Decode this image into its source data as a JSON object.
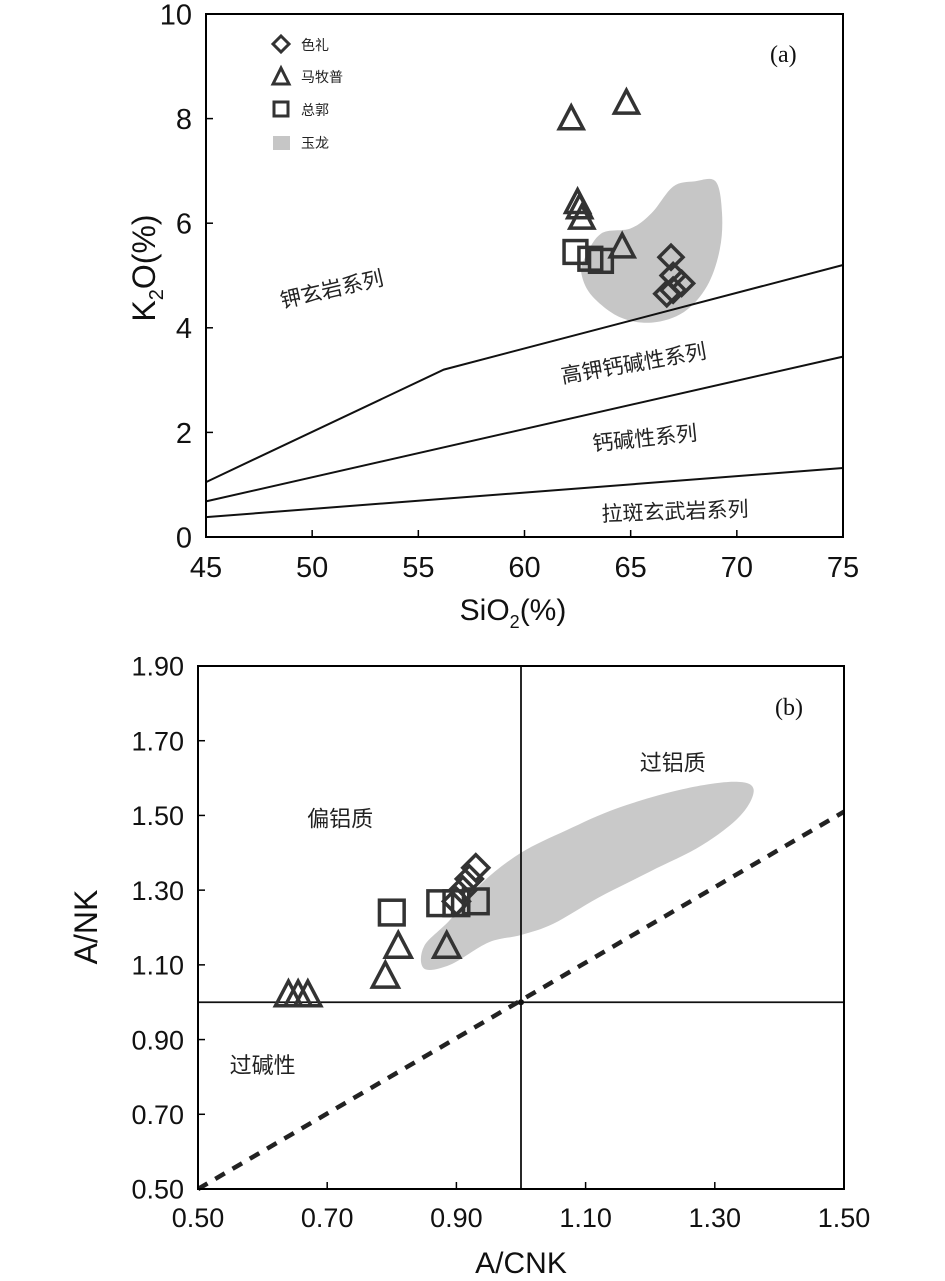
{
  "chart_data": [
    {
      "type": "scatter",
      "panel_label": "(a)",
      "xlabel": {
        "main": "SiO",
        "sub": "2",
        "tail": "(%)"
      },
      "ylabel": {
        "main": "K",
        "sub": "2",
        "tail": "O(%)"
      },
      "xlim": [
        45,
        75
      ],
      "ylim": [
        0,
        10
      ],
      "xticks": [
        "45",
        "50",
        "55",
        "60",
        "65",
        "70",
        "75"
      ],
      "yticks": [
        "0",
        "2",
        "4",
        "6",
        "8",
        "10"
      ],
      "legend": [
        {
          "label": "色礼",
          "marker": "diamond"
        },
        {
          "label": "马牧普",
          "marker": "triangle"
        },
        {
          "label": "总郭",
          "marker": "square"
        },
        {
          "label": "玉龙",
          "marker": "field"
        }
      ],
      "series": [
        {
          "name": "色礼",
          "marker": "diamond",
          "points": [
            [
              66.9,
              5.35
            ],
            [
              67.0,
              5.0
            ],
            [
              67.4,
              4.85
            ],
            [
              67.0,
              4.72
            ],
            [
              66.7,
              4.65
            ]
          ]
        },
        {
          "name": "马牧普",
          "marker": "triangle",
          "points": [
            [
              62.2,
              8.0
            ],
            [
              64.8,
              8.3
            ],
            [
              62.5,
              6.4
            ],
            [
              62.6,
              6.3
            ],
            [
              62.7,
              6.1
            ],
            [
              64.6,
              5.55
            ]
          ]
        },
        {
          "name": "总郭",
          "marker": "square",
          "points": [
            [
              62.4,
              5.45
            ],
            [
              63.1,
              5.32
            ],
            [
              63.6,
              5.28
            ]
          ]
        }
      ],
      "field": {
        "name": "玉龙",
        "outline": [
          [
            62.8,
            5.3
          ],
          [
            63.6,
            5.8
          ],
          [
            65.0,
            5.9
          ],
          [
            66.0,
            6.2
          ],
          [
            67.0,
            6.7
          ],
          [
            68.0,
            6.8
          ],
          [
            69.0,
            6.8
          ],
          [
            69.3,
            6.2
          ],
          [
            69.2,
            5.5
          ],
          [
            68.6,
            4.8
          ],
          [
            67.5,
            4.3
          ],
          [
            66.0,
            4.1
          ],
          [
            64.5,
            4.2
          ],
          [
            63.2,
            4.6
          ],
          [
            62.7,
            5.0
          ]
        ]
      },
      "boundaries": [
        [
          [
            45,
            1.05
          ],
          [
            56.2,
            3.2
          ],
          [
            75,
            5.2
          ]
        ],
        [
          [
            45,
            0.68
          ],
          [
            75,
            3.45
          ]
        ],
        [
          [
            45,
            0.38
          ],
          [
            75,
            1.32
          ]
        ]
      ],
      "series_labels": [
        {
          "text": "钾玄岩系列",
          "at": [
            51,
            4.6
          ],
          "angle": -13
        },
        {
          "text": "高钾钙碱性系列",
          "at": [
            65.2,
            3.18
          ],
          "angle": -10
        },
        {
          "text": "钙碱性系列",
          "at": [
            65.7,
            1.75
          ],
          "angle": -6
        },
        {
          "text": "拉斑玄武岩系列",
          "at": [
            67.1,
            0.35
          ],
          "angle": -2
        }
      ]
    },
    {
      "type": "scatter",
      "panel_label": "(b)",
      "xlabel": "A/CNK",
      "ylabel": "A/NK",
      "xlim": [
        0.5,
        1.5
      ],
      "ylim": [
        0.5,
        1.9
      ],
      "xticks": [
        "0.50",
        "0.70",
        "0.90",
        "1.10",
        "1.30",
        "1.50"
      ],
      "yticks": [
        "0.50",
        "0.70",
        "0.90",
        "1.10",
        "1.30",
        "1.50",
        "1.70",
        "1.90"
      ],
      "series": [
        {
          "name": "色礼",
          "marker": "diamond",
          "points": [
            [
              0.93,
              1.36
            ],
            [
              0.92,
              1.33
            ],
            [
              0.91,
              1.3
            ],
            [
              0.9,
              1.27
            ]
          ]
        },
        {
          "name": "马牧普",
          "marker": "triangle",
          "points": [
            [
              0.64,
              1.02
            ],
            [
              0.655,
              1.02
            ],
            [
              0.67,
              1.02
            ],
            [
              0.79,
              1.07
            ],
            [
              0.81,
              1.15
            ],
            [
              0.885,
              1.15
            ]
          ]
        },
        {
          "name": "总郭",
          "marker": "square",
          "points": [
            [
              0.8,
              1.24
            ],
            [
              0.875,
              1.265
            ],
            [
              0.9,
              1.265
            ],
            [
              0.93,
              1.27
            ]
          ]
        }
      ],
      "field": {
        "name": "玉龙",
        "outline": [
          [
            0.85,
            1.15
          ],
          [
            0.89,
            1.22
          ],
          [
            0.94,
            1.32
          ],
          [
            1.0,
            1.4
          ],
          [
            1.07,
            1.46
          ],
          [
            1.15,
            1.52
          ],
          [
            1.25,
            1.57
          ],
          [
            1.33,
            1.59
          ],
          [
            1.36,
            1.57
          ],
          [
            1.34,
            1.5
          ],
          [
            1.28,
            1.42
          ],
          [
            1.2,
            1.35
          ],
          [
            1.12,
            1.28
          ],
          [
            1.05,
            1.21
          ],
          [
            1.0,
            1.18
          ],
          [
            0.95,
            1.16
          ],
          [
            0.89,
            1.1
          ],
          [
            0.85,
            1.09
          ]
        ]
      },
      "reference_lines": {
        "vertical_x": 1.0,
        "horizontal_y": 1.0,
        "dashed": [
          [
            0.5,
            0.5
          ],
          [
            1.5,
            1.51
          ]
        ]
      },
      "region_labels": [
        {
          "text": "偏铝质",
          "at": [
            0.72,
            1.47
          ]
        },
        {
          "text": "过铝质",
          "at": [
            1.235,
            1.62
          ]
        },
        {
          "text": "过碱性",
          "at": [
            0.6,
            0.81
          ]
        }
      ]
    }
  ]
}
